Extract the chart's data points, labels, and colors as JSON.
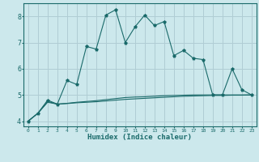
{
  "xlabel": "Humidex (Indice chaleur)",
  "background_color": "#cce8ec",
  "grid_color": "#b0cdd4",
  "line_color": "#1a6a6a",
  "xlim": [
    -0.5,
    23.5
  ],
  "ylim": [
    3.8,
    8.5
  ],
  "x_ticks": [
    0,
    1,
    2,
    3,
    4,
    5,
    6,
    7,
    8,
    9,
    10,
    11,
    12,
    13,
    14,
    15,
    16,
    17,
    18,
    19,
    20,
    21,
    22,
    23
  ],
  "y_ticks": [
    4,
    5,
    6,
    7,
    8
  ],
  "series1_y": [
    4.0,
    4.3,
    4.8,
    4.65,
    5.55,
    5.4,
    6.85,
    6.75,
    8.05,
    8.25,
    7.0,
    7.6,
    8.05,
    7.65,
    7.8,
    6.5,
    6.7,
    6.4,
    6.35,
    5.0,
    5.0,
    6.0,
    5.2,
    5.0
  ],
  "series2_y": [
    4.0,
    4.3,
    4.75,
    4.65,
    4.68,
    4.72,
    4.75,
    4.78,
    4.82,
    4.86,
    4.9,
    4.92,
    4.93,
    4.95,
    4.97,
    4.98,
    4.99,
    5.0,
    5.0,
    5.0,
    5.0,
    5.0,
    5.0,
    5.0
  ],
  "series3_y": [
    4.0,
    4.3,
    4.72,
    4.65,
    4.67,
    4.7,
    4.72,
    4.74,
    4.77,
    4.8,
    4.83,
    4.85,
    4.87,
    4.89,
    4.91,
    4.93,
    4.95,
    4.96,
    4.97,
    4.98,
    4.98,
    4.99,
    4.99,
    5.0
  ]
}
